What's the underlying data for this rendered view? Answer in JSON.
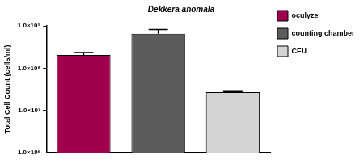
{
  "chart_data": {
    "type": "bar",
    "title": "Dekkera anomala",
    "y_label": "Total Cell Count (cells/ml)",
    "categories": [
      "oculyze",
      "counting chamber",
      "CFU"
    ],
    "values": [
      205000000,
      650000000,
      27000000
    ],
    "errors": [
      30000000,
      170000000,
      1000000
    ],
    "colors": [
      "#a0004e",
      "#5c5c5c",
      "#d4d4d4"
    ],
    "log": "y",
    "ylim": [
      1000000,
      1000000000
    ],
    "yticks": [
      {
        "value": 1000000,
        "label": "1.0×10⁶"
      },
      {
        "value": 10000000,
        "label": "1.0×10⁷"
      },
      {
        "value": 100000000,
        "label": "1.0×10⁸"
      },
      {
        "value": 1000000000,
        "label": "1.0×10⁹"
      }
    ],
    "grid": false,
    "legend": "right",
    "tick_labels": "y"
  }
}
